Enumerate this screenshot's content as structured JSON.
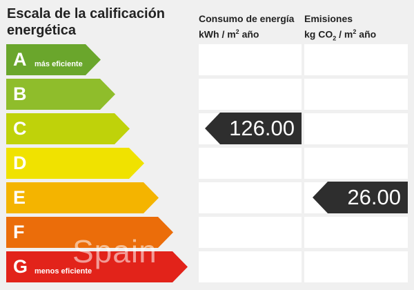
{
  "scale": {
    "title": "Escala de la calificación energética",
    "bands": [
      {
        "letter": "A",
        "note": "más eficiente",
        "color": "#6aa62c"
      },
      {
        "letter": "B",
        "note": "",
        "color": "#8fbd2b"
      },
      {
        "letter": "C",
        "note": "",
        "color": "#bfd20a"
      },
      {
        "letter": "D",
        "note": "",
        "color": "#f0e200"
      },
      {
        "letter": "E",
        "note": "",
        "color": "#f4b400"
      },
      {
        "letter": "F",
        "note": "",
        "color": "#eb6d0a"
      },
      {
        "letter": "G",
        "note": "menos eficiente",
        "color": "#e2231a"
      }
    ]
  },
  "energy": {
    "header": "Consumo de energía",
    "unit_prefix": "kWh / m",
    "unit_sup": "2",
    "unit_suffix": " año",
    "value": "126.00",
    "rating": "C"
  },
  "emissions": {
    "header": "Emisiones",
    "unit_prefix": "kg CO",
    "unit_sub": "2",
    "unit_mid": " / m",
    "unit_sup": "2",
    "unit_suffix": " año",
    "value": "26.00",
    "rating": "E"
  },
  "watermark": "Spain"
}
